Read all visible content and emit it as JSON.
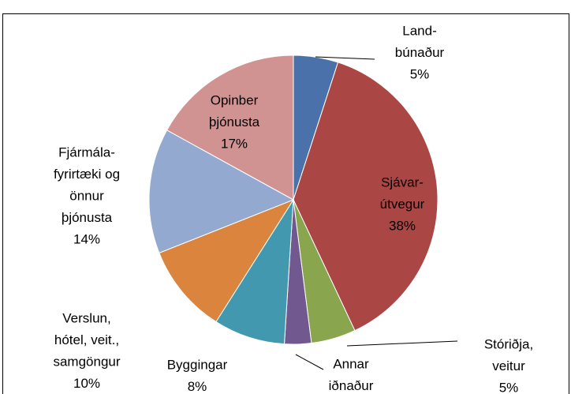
{
  "chart_data": {
    "type": "pie",
    "categories": [
      [
        "Land-",
        "búnaður"
      ],
      [
        "Sjávar-",
        "útvegur"
      ],
      [
        "Stóriðja,",
        "veitur"
      ],
      [
        "Annar",
        "iðnaður"
      ],
      [
        "Byggingar"
      ],
      [
        "Verslun,",
        "hótel, veit.,",
        "samgöngur"
      ],
      [
        "Fjármála-",
        "fyrirtæki og",
        "önnur",
        "þjónusta"
      ],
      [
        "Opinber",
        "þjónusta"
      ]
    ],
    "values": [
      5,
      38,
      5,
      3,
      8,
      10,
      14,
      17
    ],
    "value_labels": [
      "5%",
      "38%",
      "5%",
      null,
      "8%",
      "10%",
      "14%",
      "17%"
    ],
    "colors": [
      "#4a71a9",
      "#aa4643",
      "#89a54e",
      "#71588f",
      "#4198af",
      "#db843d",
      "#93a9cf",
      "#d19392"
    ]
  }
}
